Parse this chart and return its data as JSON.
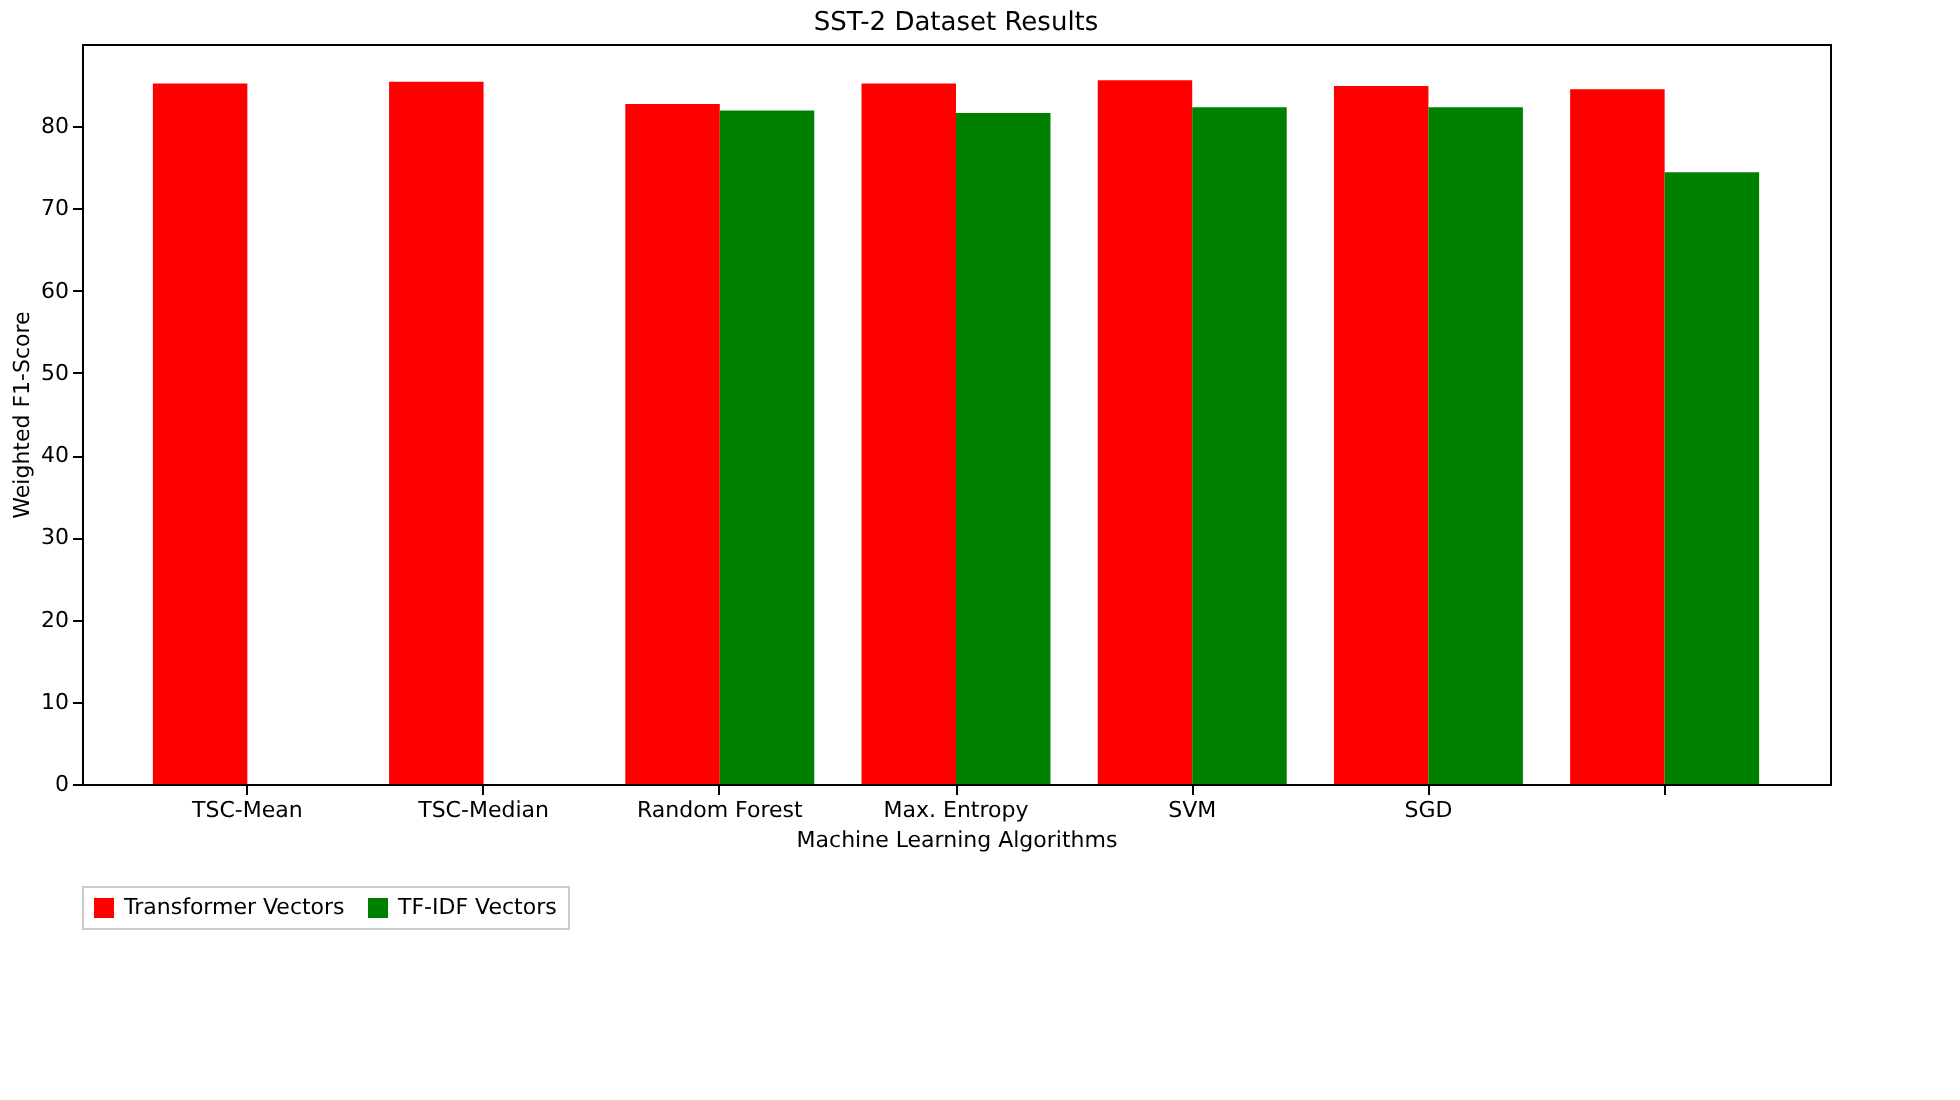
{
  "chart_data": {
    "type": "bar",
    "title": "SST-2 Dataset Results",
    "xlabel": "Machine Learning Algorithms",
    "ylabel": "Weighted F1-Score",
    "categories": [
      "TSC-Mean",
      "TSC-Median",
      "Random Forest",
      "Max. Entropy",
      "SVM",
      "SGD",
      null
    ],
    "series": [
      {
        "name": "Transformer Vectors",
        "color": "#ff0000",
        "values": [
          85.2,
          85.4,
          82.7,
          85.2,
          85.6,
          84.9,
          84.5
        ]
      },
      {
        "name": "TF-IDF Vectors",
        "color": "#008000",
        "values": [
          null,
          null,
          81.9,
          81.6,
          82.3,
          82.3,
          74.4
        ]
      }
    ],
    "ylim": [
      0,
      90
    ],
    "yticks": [
      0,
      10,
      20,
      30,
      40,
      50,
      60,
      70,
      80
    ],
    "grid": false,
    "legend": "bottom"
  }
}
